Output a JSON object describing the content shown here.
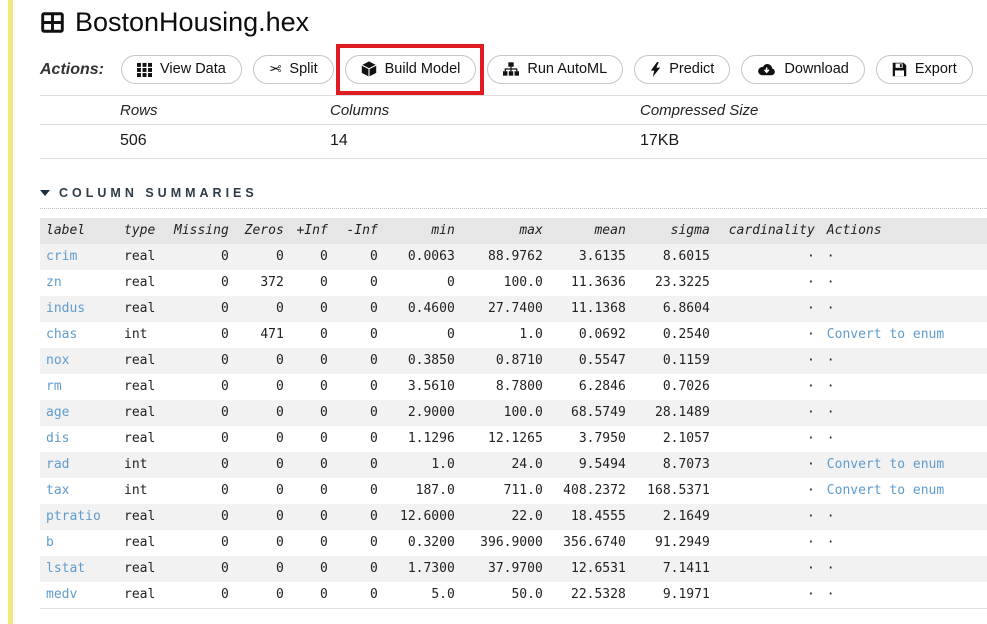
{
  "title": "BostonHousing.hex",
  "title_icon": "table-icon",
  "actions": {
    "label": "Actions:",
    "buttons": [
      {
        "label": "View Data",
        "icon": "th-grid-icon"
      },
      {
        "label": "Split",
        "icon": "scissors-icon"
      },
      {
        "label": "Build Model",
        "icon": "cube-icon",
        "highlighted": true
      },
      {
        "label": "Run AutoML",
        "icon": "sitemap-icon"
      },
      {
        "label": "Predict",
        "icon": "bolt-icon"
      },
      {
        "label": "Download",
        "icon": "cloud-download-icon"
      },
      {
        "label": "Export",
        "icon": "save-icon"
      }
    ]
  },
  "stats": {
    "headers": [
      "Rows",
      "Columns",
      "Compressed Size"
    ],
    "values": [
      "506",
      "14",
      "17KB"
    ]
  },
  "column_summaries": {
    "section_title": "COLUMN SUMMARIES",
    "columns": [
      "label",
      "type",
      "Missing",
      "Zeros",
      "+Inf",
      "-Inf",
      "min",
      "max",
      "mean",
      "sigma",
      "cardinality",
      "Actions"
    ],
    "rows": [
      {
        "label": "crim",
        "type": "real",
        "missing": "0",
        "zeros": "0",
        "pos_inf": "0",
        "neg_inf": "0",
        "min": "0.0063",
        "max": "88.9762",
        "mean": "3.6135",
        "sigma": "8.6015",
        "cardinality": "·",
        "action": "·"
      },
      {
        "label": "zn",
        "type": "real",
        "missing": "0",
        "zeros": "372",
        "pos_inf": "0",
        "neg_inf": "0",
        "min": "0",
        "max": "100.0",
        "mean": "11.3636",
        "sigma": "23.3225",
        "cardinality": "·",
        "action": "·"
      },
      {
        "label": "indus",
        "type": "real",
        "missing": "0",
        "zeros": "0",
        "pos_inf": "0",
        "neg_inf": "0",
        "min": "0.4600",
        "max": "27.7400",
        "mean": "11.1368",
        "sigma": "6.8604",
        "cardinality": "·",
        "action": "·"
      },
      {
        "label": "chas",
        "type": "int",
        "missing": "0",
        "zeros": "471",
        "pos_inf": "0",
        "neg_inf": "0",
        "min": "0",
        "max": "1.0",
        "mean": "0.0692",
        "sigma": "0.2540",
        "cardinality": "·",
        "action": "Convert to enum"
      },
      {
        "label": "nox",
        "type": "real",
        "missing": "0",
        "zeros": "0",
        "pos_inf": "0",
        "neg_inf": "0",
        "min": "0.3850",
        "max": "0.8710",
        "mean": "0.5547",
        "sigma": "0.1159",
        "cardinality": "·",
        "action": "·"
      },
      {
        "label": "rm",
        "type": "real",
        "missing": "0",
        "zeros": "0",
        "pos_inf": "0",
        "neg_inf": "0",
        "min": "3.5610",
        "max": "8.7800",
        "mean": "6.2846",
        "sigma": "0.7026",
        "cardinality": "·",
        "action": "·"
      },
      {
        "label": "age",
        "type": "real",
        "missing": "0",
        "zeros": "0",
        "pos_inf": "0",
        "neg_inf": "0",
        "min": "2.9000",
        "max": "100.0",
        "mean": "68.5749",
        "sigma": "28.1489",
        "cardinality": "·",
        "action": "·"
      },
      {
        "label": "dis",
        "type": "real",
        "missing": "0",
        "zeros": "0",
        "pos_inf": "0",
        "neg_inf": "0",
        "min": "1.1296",
        "max": "12.1265",
        "mean": "3.7950",
        "sigma": "2.1057",
        "cardinality": "·",
        "action": "·"
      },
      {
        "label": "rad",
        "type": "int",
        "missing": "0",
        "zeros": "0",
        "pos_inf": "0",
        "neg_inf": "0",
        "min": "1.0",
        "max": "24.0",
        "mean": "9.5494",
        "sigma": "8.7073",
        "cardinality": "·",
        "action": "Convert to enum"
      },
      {
        "label": "tax",
        "type": "int",
        "missing": "0",
        "zeros": "0",
        "pos_inf": "0",
        "neg_inf": "0",
        "min": "187.0",
        "max": "711.0",
        "mean": "408.2372",
        "sigma": "168.5371",
        "cardinality": "·",
        "action": "Convert to enum"
      },
      {
        "label": "ptratio",
        "type": "real",
        "missing": "0",
        "zeros": "0",
        "pos_inf": "0",
        "neg_inf": "0",
        "min": "12.6000",
        "max": "22.0",
        "mean": "18.4555",
        "sigma": "2.1649",
        "cardinality": "·",
        "action": "·"
      },
      {
        "label": "b",
        "type": "real",
        "missing": "0",
        "zeros": "0",
        "pos_inf": "0",
        "neg_inf": "0",
        "min": "0.3200",
        "max": "396.9000",
        "mean": "356.6740",
        "sigma": "91.2949",
        "cardinality": "·",
        "action": "·"
      },
      {
        "label": "lstat",
        "type": "real",
        "missing": "0",
        "zeros": "0",
        "pos_inf": "0",
        "neg_inf": "0",
        "min": "1.7300",
        "max": "37.9700",
        "mean": "12.6531",
        "sigma": "7.1411",
        "cardinality": "·",
        "action": "·"
      },
      {
        "label": "medv",
        "type": "real",
        "missing": "0",
        "zeros": "0",
        "pos_inf": "0",
        "neg_inf": "0",
        "min": "5.0",
        "max": "50.0",
        "mean": "22.5328",
        "sigma": "9.1971",
        "cardinality": "·",
        "action": "·"
      }
    ]
  },
  "colors": {
    "link": "#5f9ccd",
    "highlight": "#e11b22",
    "cell_strip": "#f1e87e",
    "table_header_bg": "#e6e6e6",
    "row_stripe_bg": "#f2f2f2"
  }
}
